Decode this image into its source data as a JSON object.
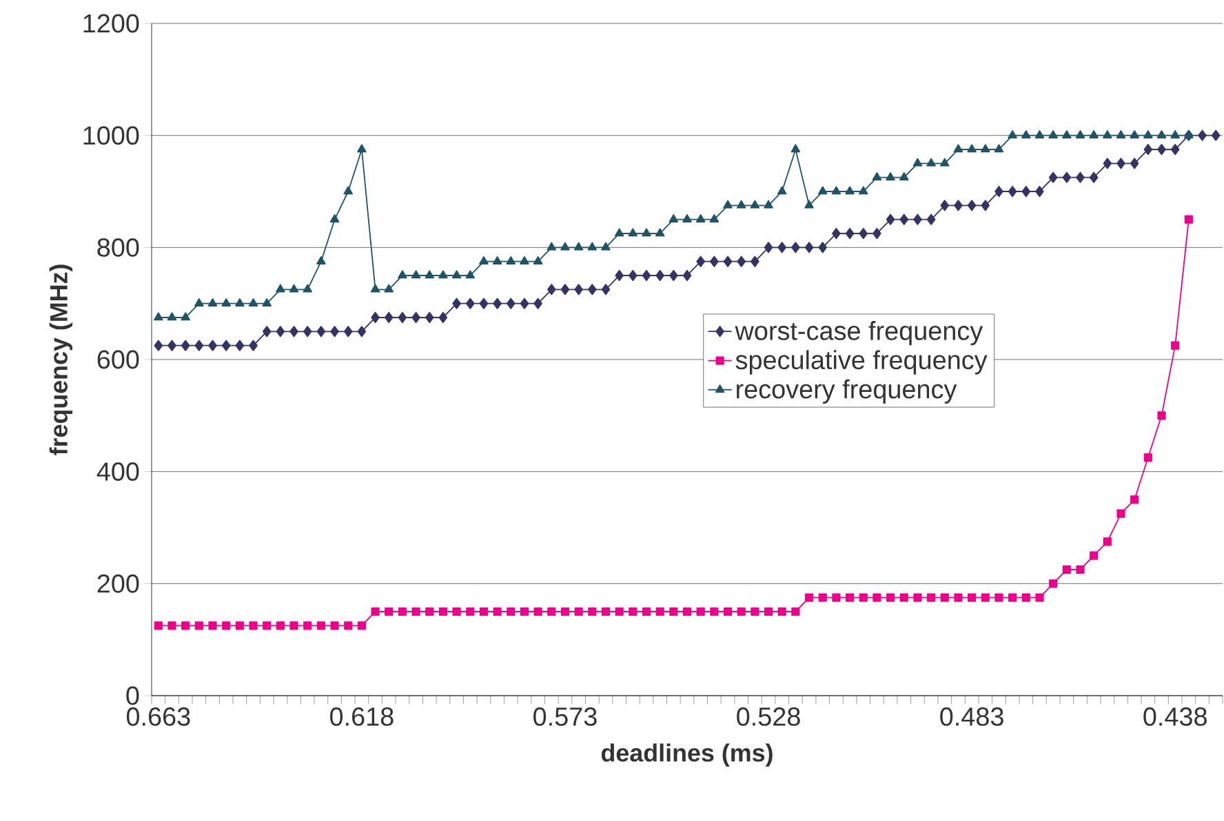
{
  "chart_data": {
    "type": "line",
    "xlabel": "deadlines (ms)",
    "ylabel": "frequency (MHz)",
    "categories": [
      "0.663",
      null,
      null,
      null,
      null,
      null,
      null,
      null,
      null,
      null,
      null,
      null,
      null,
      null,
      null,
      "0.618",
      null,
      null,
      null,
      null,
      null,
      null,
      null,
      null,
      null,
      null,
      null,
      null,
      null,
      null,
      "0.573",
      null,
      null,
      null,
      null,
      null,
      null,
      null,
      null,
      null,
      null,
      null,
      null,
      null,
      null,
      "0.528",
      null,
      null,
      null,
      null,
      null,
      null,
      null,
      null,
      null,
      null,
      null,
      null,
      null,
      null,
      "0.483",
      null,
      null,
      null,
      null,
      null,
      null,
      null,
      null,
      null,
      null,
      null,
      null,
      null,
      null,
      "0.438",
      null,
      null,
      null
    ],
    "series": [
      {
        "name": "worst-case frequency",
        "color": "#333366",
        "marker": "diamond",
        "values": [
          625,
          625,
          625,
          625,
          625,
          625,
          625,
          625,
          650,
          650,
          650,
          650,
          650,
          650,
          650,
          650,
          675,
          675,
          675,
          675,
          675,
          675,
          700,
          700,
          700,
          700,
          700,
          700,
          700,
          725,
          725,
          725,
          725,
          725,
          750,
          750,
          750,
          750,
          750,
          750,
          775,
          775,
          775,
          775,
          775,
          800,
          800,
          800,
          800,
          800,
          825,
          825,
          825,
          825,
          850,
          850,
          850,
          850,
          875,
          875,
          875,
          875,
          900,
          900,
          900,
          900,
          925,
          925,
          925,
          925,
          950,
          950,
          950,
          975,
          975,
          975,
          1000,
          1000,
          1000
        ]
      },
      {
        "name": "speculative frequency",
        "color": "#ec008c",
        "marker": "square",
        "values": [
          125,
          125,
          125,
          125,
          125,
          125,
          125,
          125,
          125,
          125,
          125,
          125,
          125,
          125,
          125,
          125,
          150,
          150,
          150,
          150,
          150,
          150,
          150,
          150,
          150,
          150,
          150,
          150,
          150,
          150,
          150,
          150,
          150,
          150,
          150,
          150,
          150,
          150,
          150,
          150,
          150,
          150,
          150,
          150,
          150,
          150,
          150,
          150,
          175,
          175,
          175,
          175,
          175,
          175,
          175,
          175,
          175,
          175,
          175,
          175,
          175,
          175,
          175,
          175,
          175,
          175,
          200,
          225,
          225,
          250,
          275,
          325,
          350,
          425,
          500,
          625,
          850,
          null,
          null
        ]
      },
      {
        "name": "recovery frequency",
        "color": "#1f5468",
        "marker": "triangle",
        "values": [
          675,
          675,
          675,
          700,
          700,
          700,
          700,
          700,
          700,
          725,
          725,
          725,
          775,
          850,
          900,
          975,
          725,
          725,
          750,
          750,
          750,
          750,
          750,
          750,
          775,
          775,
          775,
          775,
          775,
          800,
          800,
          800,
          800,
          800,
          825,
          825,
          825,
          825,
          850,
          850,
          850,
          850,
          875,
          875,
          875,
          875,
          900,
          975,
          875,
          900,
          900,
          900,
          900,
          925,
          925,
          925,
          950,
          950,
          950,
          975,
          975,
          975,
          975,
          1000,
          1000,
          1000,
          1000,
          1000,
          1000,
          1000,
          1000,
          1000,
          1000,
          1000,
          1000,
          1000,
          1000,
          null,
          null
        ]
      }
    ],
    "ylim": [
      0,
      1200
    ],
    "yticks": [
      0,
      200,
      400,
      600,
      800,
      1000,
      1200
    ],
    "grid": "y",
    "legend": "right"
  }
}
